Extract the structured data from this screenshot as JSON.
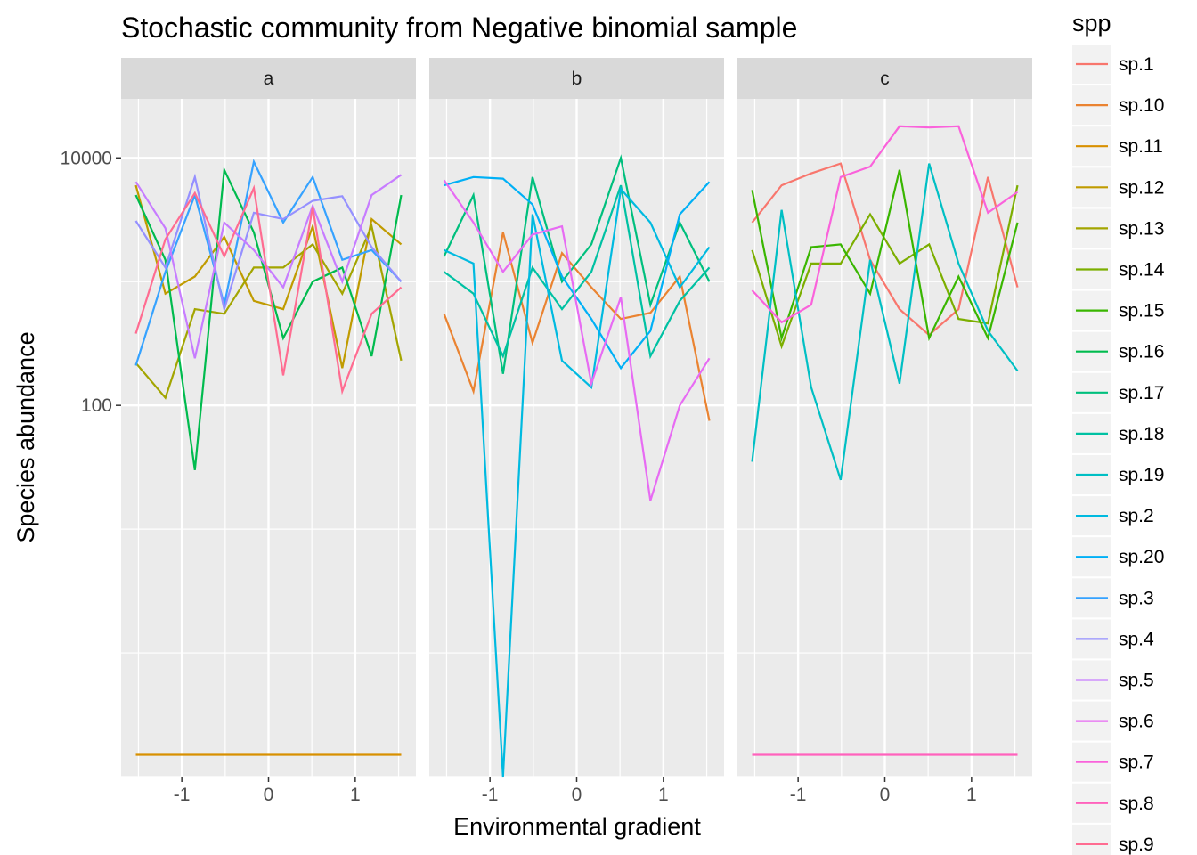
{
  "chart_data": {
    "type": "line",
    "title": "Stochastic community from Negative binomial sample",
    "xlabel": "Environmental gradient",
    "ylabel": "Species abundance",
    "y_scale": "log10",
    "ylim": [
      0.1,
      30000
    ],
    "xlim": [
      -1.7,
      1.7
    ],
    "x_ticks": [
      -1,
      0,
      1
    ],
    "x_tick_labels": [
      "-1",
      "0",
      "1"
    ],
    "y_ticks": [
      100,
      10000
    ],
    "y_tick_labels": [
      "100",
      "10000"
    ],
    "x": [
      -1.53,
      -1.19,
      -0.85,
      -0.51,
      -0.17,
      0.17,
      0.51,
      0.85,
      1.19,
      1.53
    ],
    "facets": [
      "a",
      "b",
      "c"
    ],
    "grid": true,
    "legend": {
      "title": "spp",
      "placement": "right",
      "entries": [
        "sp.1",
        "sp.10",
        "sp.11",
        "sp.12",
        "sp.13",
        "sp.14",
        "sp.15",
        "sp.16",
        "sp.17",
        "sp.18",
        "sp.19",
        "sp.2",
        "sp.20",
        "sp.3",
        "sp.4",
        "sp.5",
        "sp.6",
        "sp.7",
        "sp.8",
        "sp.9"
      ],
      "colors": [
        "#F8766D",
        "#EA8331",
        "#D89000",
        "#C09B00",
        "#A3A500",
        "#7CAE00",
        "#39B600",
        "#00BB4E",
        "#00BF7D",
        "#00C1A3",
        "#00BFC4",
        "#00BAE0",
        "#00B0F6",
        "#35A2FF",
        "#9590FF",
        "#C77CFF",
        "#E76BF3",
        "#FA62DB",
        "#FF62BC",
        "#FF6C91"
      ]
    },
    "series": [
      {
        "name": "sp.1",
        "facet": "c",
        "values": [
          3000,
          6000,
          7500,
          9000,
          1500,
          600,
          370,
          600,
          7000,
          900
        ]
      },
      {
        "name": "sp.10",
        "facet": "b",
        "values": [
          550,
          130,
          2500,
          320,
          1700,
          900,
          500,
          560,
          1100,
          75
        ]
      },
      {
        "name": "sp.11",
        "facet": "a",
        "values": [
          0.15,
          0.15,
          0.15,
          0.15,
          0.15,
          0.15,
          0.15,
          0.15,
          0.15,
          0.15
        ]
      },
      {
        "name": "sp.12",
        "facet": "a",
        "values": [
          6000,
          800,
          1100,
          2300,
          700,
          600,
          2800,
          200,
          3200,
          2000
        ]
      },
      {
        "name": "sp.13",
        "facet": "a",
        "values": [
          220,
          115,
          600,
          550,
          1300,
          1300,
          2000,
          800,
          2800,
          230
        ]
      },
      {
        "name": "sp.14",
        "facet": "c",
        "values": [
          1800,
          300,
          1400,
          1400,
          3500,
          1400,
          2000,
          500,
          460,
          6000
        ]
      },
      {
        "name": "sp.15",
        "facet": "c",
        "values": [
          5500,
          350,
          1900,
          2000,
          800,
          8000,
          350,
          1100,
          350,
          3000
        ]
      },
      {
        "name": "sp.16",
        "facet": "a",
        "values": [
          5000,
          1500,
          30,
          8000,
          2500,
          350,
          1000,
          1300,
          250,
          5000
        ]
      },
      {
        "name": "sp.17",
        "facet": "b",
        "values": [
          1600,
          5000,
          180,
          7000,
          1000,
          2000,
          10000,
          650,
          3000,
          1000
        ]
      },
      {
        "name": "sp.18",
        "facet": "b",
        "values": [
          1200,
          800,
          250,
          1300,
          600,
          1200,
          6000,
          250,
          700,
          1300
        ]
      },
      {
        "name": "sp.19",
        "facet": "c",
        "values": [
          35,
          3800,
          140,
          25,
          1500,
          150,
          9000,
          1400,
          400,
          190
        ]
      },
      {
        "name": "sp.2",
        "facet": "b",
        "values": [
          1800,
          1400,
          0.1,
          3500,
          230,
          140,
          5600,
          3000,
          900,
          1900
        ]
      },
      {
        "name": "sp.20",
        "facet": "b",
        "values": [
          6000,
          7000,
          6800,
          4200,
          1100,
          500,
          200,
          400,
          3500,
          6400
        ]
      },
      {
        "name": "sp.3",
        "facet": "a",
        "values": [
          210,
          1200,
          5000,
          650,
          9300,
          3000,
          7000,
          1500,
          1800,
          1000
        ]
      },
      {
        "name": "sp.4",
        "facet": "a",
        "values": [
          3100,
          1300,
          7000,
          600,
          3600,
          3200,
          4500,
          4900,
          1900,
          1000
        ]
      },
      {
        "name": "sp.5",
        "facet": "a",
        "values": [
          6400,
          2700,
          240,
          3000,
          1800,
          900,
          4100,
          1000,
          5000,
          7300
        ]
      },
      {
        "name": "sp.6",
        "facet": "b",
        "values": [
          6600,
          3000,
          1200,
          2400,
          2800,
          150,
          750,
          17,
          100,
          240
        ]
      },
      {
        "name": "sp.7",
        "facet": "c",
        "values": [
          850,
          470,
          650,
          7000,
          8500,
          18000,
          17600,
          18000,
          3600,
          5300
        ]
      },
      {
        "name": "sp.8",
        "facet": "c",
        "values": [
          0.15,
          0.15,
          0.15,
          0.15,
          0.15,
          0.15,
          0.15,
          0.15,
          0.15,
          0.15
        ]
      },
      {
        "name": "sp.9",
        "facet": "a",
        "values": [
          380,
          2200,
          5200,
          1600,
          5700,
          175,
          4000,
          130,
          550,
          900
        ]
      }
    ]
  }
}
